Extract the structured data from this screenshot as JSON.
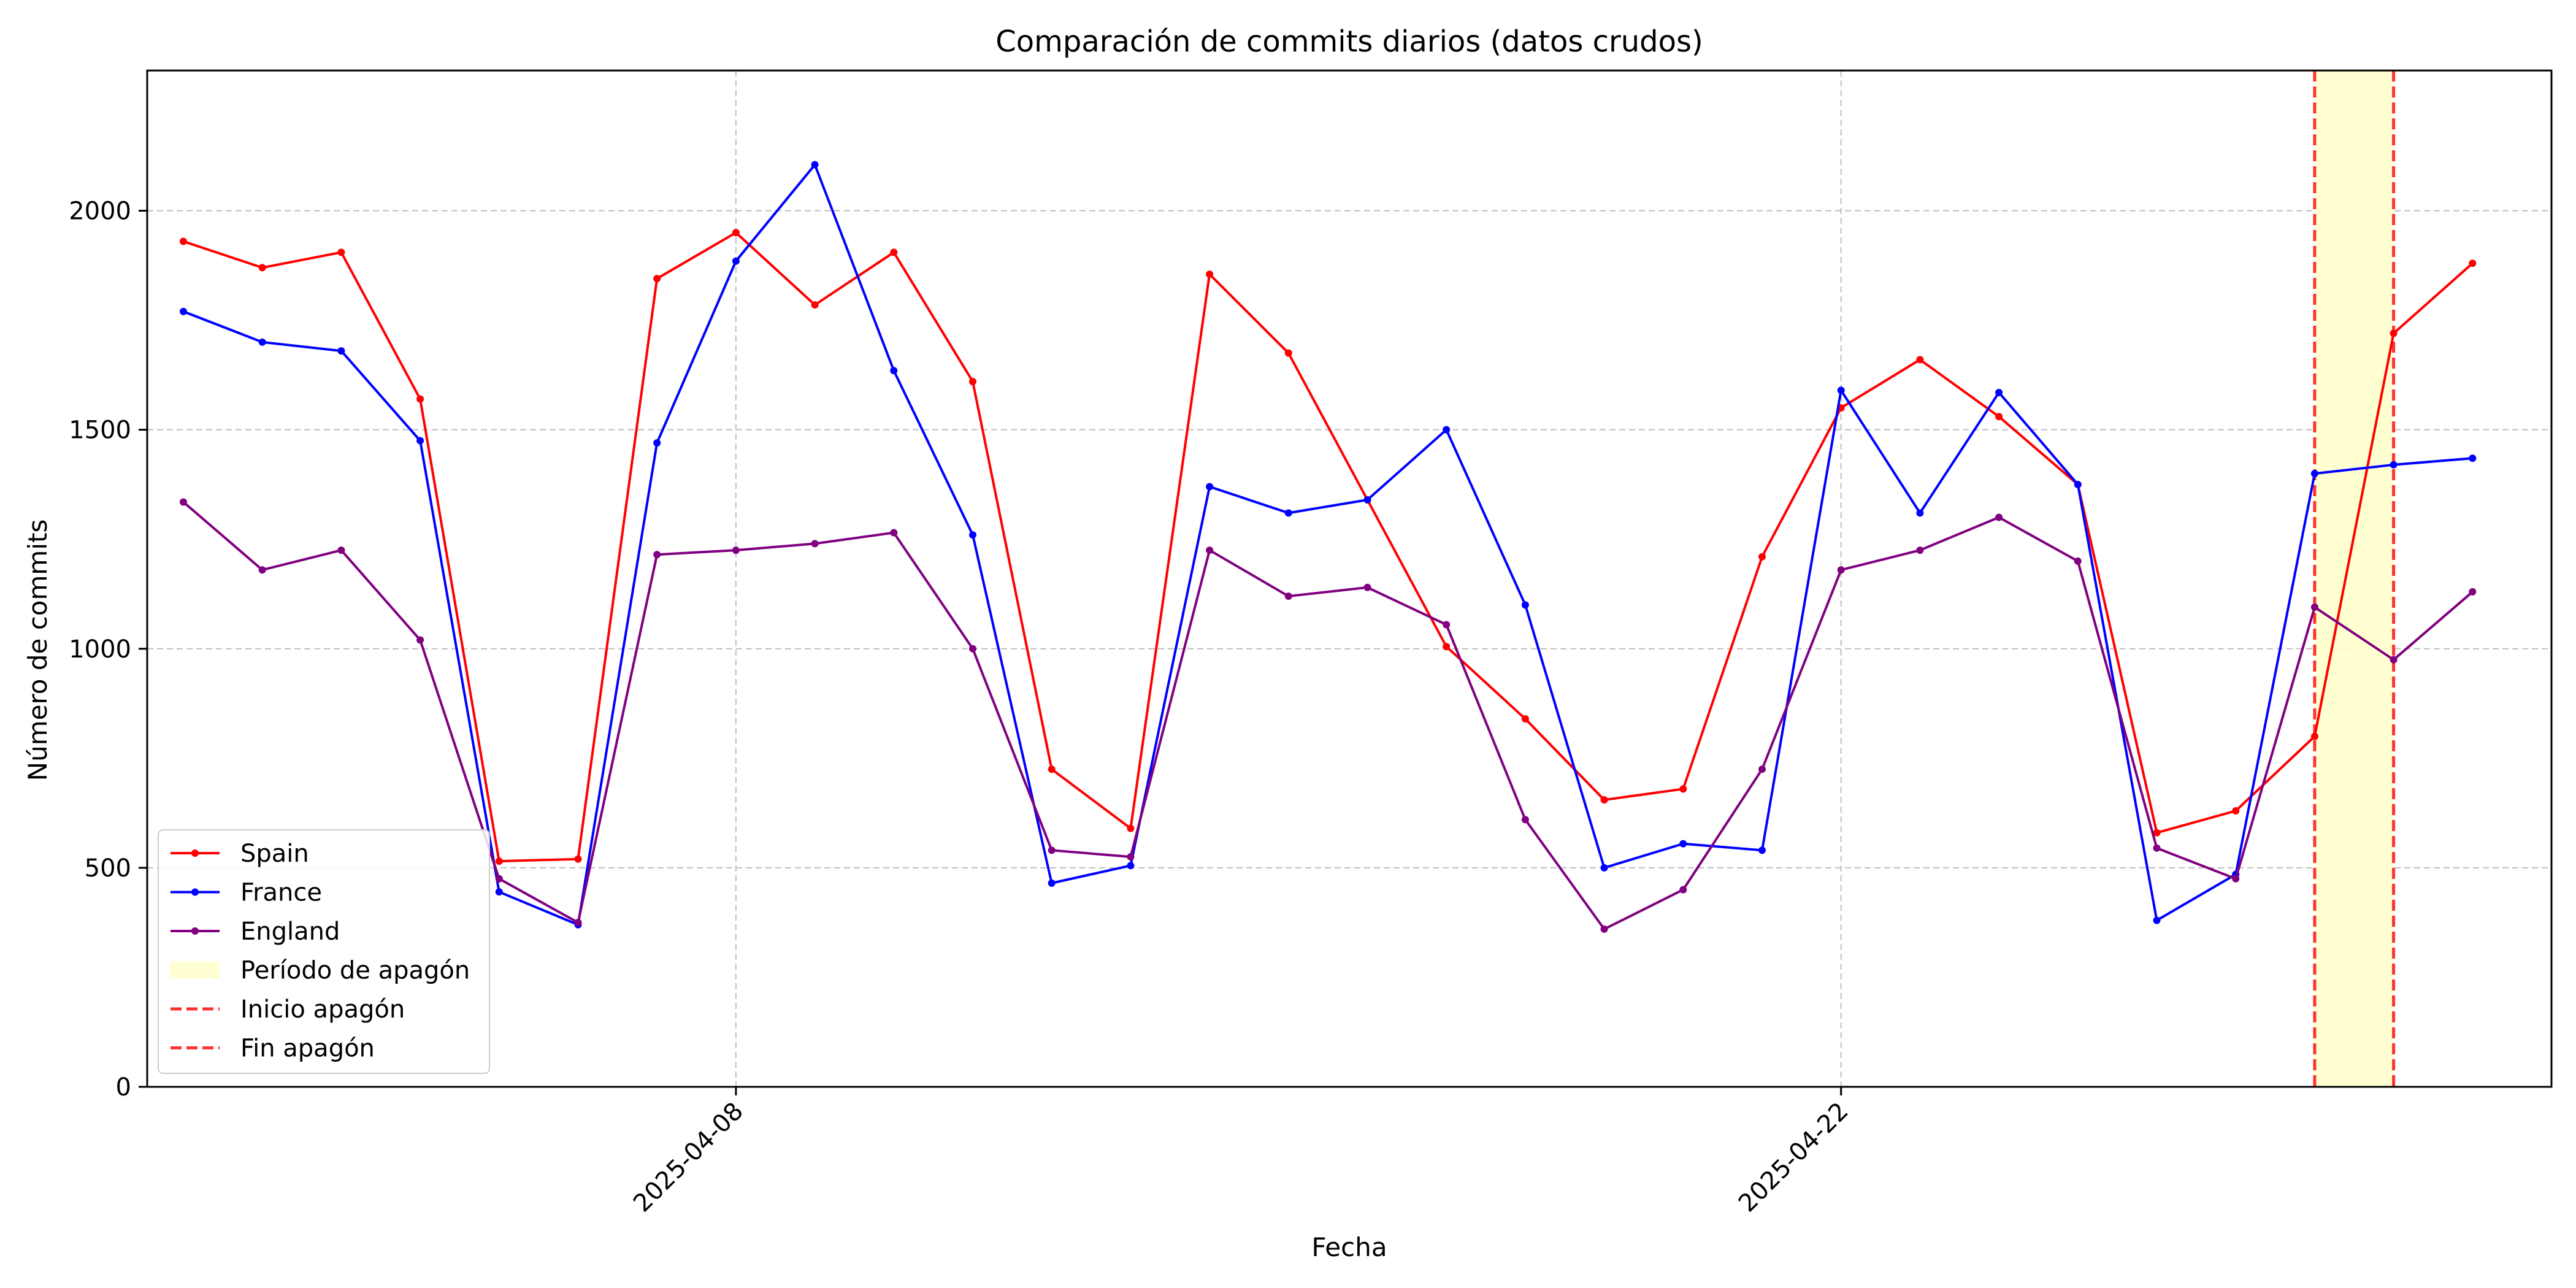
{
  "chart_data": {
    "type": "line",
    "title": "Comparación de commits diarios (datos crudos)",
    "xlabel": "Fecha",
    "ylabel": "Número de commits",
    "x": [
      "2025-04-01",
      "2025-04-02",
      "2025-04-03",
      "2025-04-04",
      "2025-04-05",
      "2025-04-06",
      "2025-04-07",
      "2025-04-08",
      "2025-04-09",
      "2025-04-10",
      "2025-04-11",
      "2025-04-12",
      "2025-04-13",
      "2025-04-14",
      "2025-04-15",
      "2025-04-16",
      "2025-04-17",
      "2025-04-18",
      "2025-04-19",
      "2025-04-20",
      "2025-04-21",
      "2025-04-22",
      "2025-04-23",
      "2025-04-24",
      "2025-04-25",
      "2025-04-26",
      "2025-04-27",
      "2025-04-28",
      "2025-04-29",
      "2025-04-30"
    ],
    "xlim": [
      "2025-03-31T13:00",
      "2025-05-01T00:00"
    ],
    "ylim": [
      0,
      2320
    ],
    "x_ticks": [
      "2025-04-08",
      "2025-04-22"
    ],
    "y_ticks": [
      0,
      500,
      1000,
      1500,
      2000
    ],
    "grid": true,
    "legend_position": "lower-left",
    "series": [
      {
        "name": "Spain",
        "color": "#ff0000",
        "values": [
          1930,
          1870,
          1905,
          1570,
          515,
          520,
          1845,
          1950,
          1785,
          1905,
          1610,
          725,
          590,
          1855,
          1675,
          1340,
          1005,
          840,
          655,
          680,
          1210,
          1550,
          1660,
          1530,
          1375,
          580,
          630,
          800,
          1720,
          1880
        ]
      },
      {
        "name": "France",
        "color": "#0000ff",
        "values": [
          1770,
          1700,
          1680,
          1475,
          445,
          370,
          1470,
          1885,
          2105,
          1635,
          1260,
          465,
          505,
          1370,
          1310,
          1340,
          1500,
          1100,
          500,
          555,
          540,
          1590,
          1310,
          1585,
          1375,
          380,
          485,
          1400,
          1420,
          1435
        ]
      },
      {
        "name": "England",
        "color": "#800080",
        "values": [
          1335,
          1180,
          1225,
          1020,
          475,
          375,
          1215,
          1225,
          1240,
          1265,
          1000,
          540,
          525,
          1225,
          1120,
          1140,
          1055,
          610,
          360,
          450,
          725,
          1180,
          1225,
          1300,
          1200,
          545,
          475,
          1095,
          975,
          1130
        ]
      }
    ],
    "blackout": {
      "start": "2025-04-28",
      "end": "2025-04-29",
      "fill_color": "#ffffcc",
      "line_color": "#ff0000",
      "period_label": "Período de apagón",
      "start_label": "Inicio apagón",
      "end_label": "Fin apagón"
    }
  }
}
